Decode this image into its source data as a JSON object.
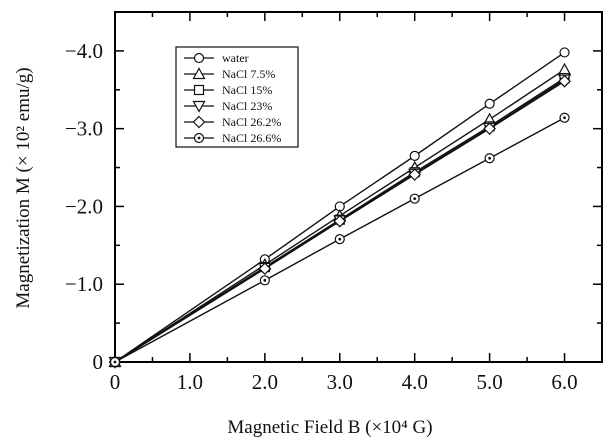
{
  "chart_data": {
    "type": "line",
    "xlabel": "Magnetic Field  B (×10⁴ G)",
    "ylabel": "Magnetization M (× 10² emu/g)",
    "xlim": [
      0,
      6.5
    ],
    "ylim": [
      0,
      4.5
    ],
    "x_ticks": [
      {
        "value": 0,
        "label": "0"
      },
      {
        "value": 1,
        "label": "1.0"
      },
      {
        "value": 2,
        "label": "2.0"
      },
      {
        "value": 3,
        "label": "3.0"
      },
      {
        "value": 4,
        "label": "4.0"
      },
      {
        "value": 5,
        "label": "5.0"
      },
      {
        "value": 6,
        "label": "6.0"
      }
    ],
    "y_ticks": [
      {
        "value": 0,
        "label": "0"
      },
      {
        "value": 1,
        "label": "−1.0"
      },
      {
        "value": 2,
        "label": "−2.0"
      },
      {
        "value": 3,
        "label": "−3.0"
      },
      {
        "value": 4,
        "label": "−4.0"
      }
    ],
    "x": [
      0,
      2,
      3,
      4,
      5,
      6
    ],
    "series": [
      {
        "name": "water",
        "marker": "circle",
        "values": [
          0,
          1.32,
          2.0,
          2.65,
          3.32,
          3.98
        ]
      },
      {
        "name": "NaCl 7.5%",
        "marker": "triangle-up",
        "values": [
          0,
          1.25,
          1.88,
          2.5,
          3.12,
          3.76
        ]
      },
      {
        "name": "NaCl 15%",
        "marker": "square",
        "values": [
          0,
          1.22,
          1.83,
          2.44,
          3.03,
          3.65
        ]
      },
      {
        "name": "NaCl 23%",
        "marker": "triangle-down",
        "values": [
          0,
          1.21,
          1.82,
          2.42,
          3.01,
          3.63
        ]
      },
      {
        "name": "NaCl 26.2%",
        "marker": "diamond",
        "values": [
          0,
          1.2,
          1.81,
          2.41,
          3.0,
          3.61
        ]
      },
      {
        "name": "NaCl 26.6%",
        "marker": "circle-dot",
        "values": [
          0,
          1.05,
          1.58,
          2.1,
          2.62,
          3.14
        ]
      }
    ],
    "legend_position": "top-left",
    "grid": false
  }
}
